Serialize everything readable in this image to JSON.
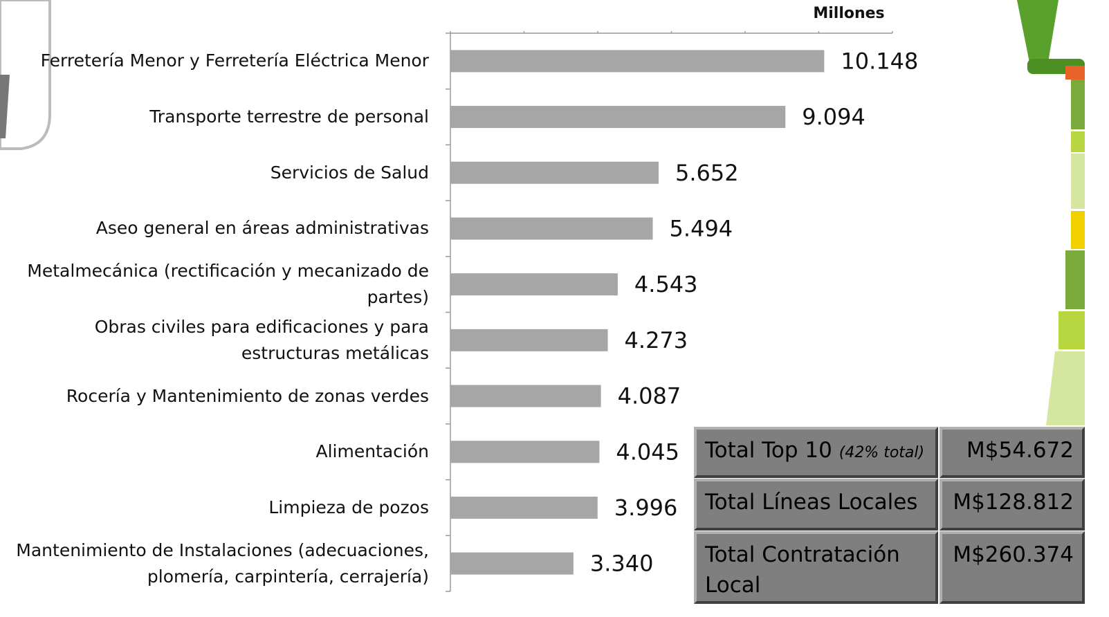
{
  "chart_data": {
    "type": "bar",
    "orientation": "horizontal",
    "x_label": "Millones",
    "categories": [
      "Ferretería Menor y Ferretería Eléctrica Menor",
      "Transporte terrestre de personal",
      "Servicios de Salud",
      "Aseo general en áreas administrativas",
      "Metalmecánica (rectificación y mecanizado de partes)",
      "Obras civiles para edificaciones y para estructuras metálicas",
      "Rocería y Mantenimiento de zonas verdes",
      "Alimentación",
      "Limpieza de pozos",
      "Mantenimiento de Instalaciones (adecuaciones, plomería, carpintería, cerrajería)"
    ],
    "values": [
      10.148,
      9.094,
      5.652,
      5.494,
      4.543,
      4.273,
      4.087,
      4.045,
      3.996,
      3.34
    ],
    "value_labels": [
      "10.148",
      "9.094",
      "5.652",
      "5.494",
      "4.543",
      "4.273",
      "4.087",
      "4.045",
      "3.996",
      "3.340"
    ],
    "color": "#a6a6a6",
    "xlim": [
      0,
      12
    ],
    "xticks": [
      0,
      2,
      4,
      6,
      8,
      10,
      12
    ]
  },
  "table": {
    "rows": [
      {
        "label": "Total Top 10",
        "note": "(42% total)",
        "value": "M$54.672"
      },
      {
        "label": "Total Líneas Locales",
        "value": "M$128.812"
      },
      {
        "label": "Total Contratación Local",
        "value": "M$260.374"
      }
    ]
  }
}
